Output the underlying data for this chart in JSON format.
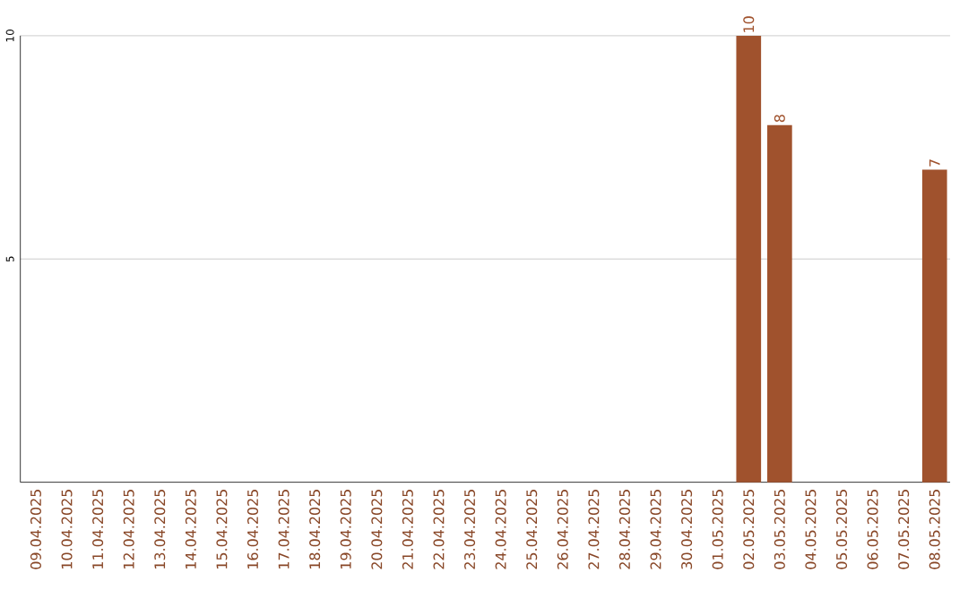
{
  "chart_data": {
    "type": "bar",
    "categories": [
      "09.04.2025",
      "10.04.2025",
      "11.04.2025",
      "12.04.2025",
      "13.04.2025",
      "14.04.2025",
      "15.04.2025",
      "16.04.2025",
      "17.04.2025",
      "18.04.2025",
      "19.04.2025",
      "20.04.2025",
      "21.04.2025",
      "22.04.2025",
      "23.04.2025",
      "24.04.2025",
      "25.04.2025",
      "26.04.2025",
      "27.04.2025",
      "28.04.2025",
      "29.04.2025",
      "30.04.2025",
      "01.05.2025",
      "02.05.2025",
      "03.05.2025",
      "04.05.2025",
      "05.05.2025",
      "06.05.2025",
      "07.05.2025",
      "08.05.2025"
    ],
    "values": [
      0,
      0,
      0,
      0,
      0,
      0,
      0,
      0,
      0,
      0,
      0,
      0,
      0,
      0,
      0,
      0,
      0,
      0,
      0,
      0,
      0,
      0,
      0,
      10,
      8,
      0,
      0,
      0,
      0,
      7
    ],
    "value_labels": [
      null,
      null,
      null,
      null,
      null,
      null,
      null,
      null,
      null,
      null,
      null,
      null,
      null,
      null,
      null,
      null,
      null,
      null,
      null,
      null,
      null,
      null,
      null,
      "10",
      "8",
      null,
      null,
      null,
      null,
      "7"
    ],
    "color": "#a0522d",
    "ylim": [
      0,
      10
    ],
    "yticks": [
      5,
      10
    ],
    "grid": "y"
  }
}
